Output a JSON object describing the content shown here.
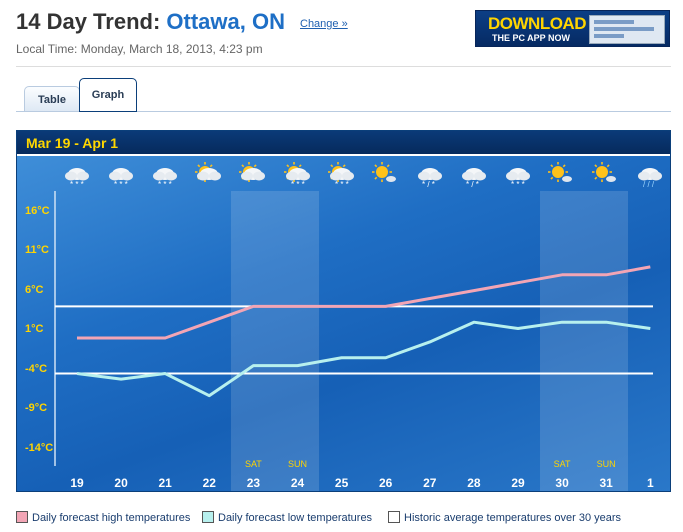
{
  "header": {
    "title_prefix": "14 Day Trend: ",
    "title_city": "Ottawa, ON",
    "change_link": "Change »",
    "local_time": "Local Time: Monday, March 18, 2013, 4:23 pm"
  },
  "banner": {
    "line1": "DOWNLOAD",
    "line2": "THE PC APP NOW"
  },
  "tabs": [
    {
      "label": "Table"
    },
    {
      "label": "Graph"
    }
  ],
  "graph": {
    "range_label": "Mar 19  -  Apr 1"
  },
  "legend": [
    {
      "label": "Daily forecast high temperatures",
      "color": "#f2a5b5"
    },
    {
      "label": "Daily forecast low temperatures",
      "color": "#b7f0ee"
    },
    {
      "label": "Historic average temperatures over 30 years",
      "color": "#ffffff"
    }
  ],
  "icons": [
    "snow-cloud",
    "snow-cloud",
    "snow-cloud",
    "partly-sunny",
    "partly-sunny",
    "snow-sun",
    "snow-sun",
    "sunny",
    "snow-rain",
    "snow-rain",
    "snow-cloud",
    "sunny",
    "sunny",
    "rain-cloud"
  ],
  "chart_data": {
    "type": "line",
    "categories": [
      "19",
      "20",
      "21",
      "22",
      "23",
      "24",
      "25",
      "26",
      "27",
      "28",
      "29",
      "30",
      "31",
      "1"
    ],
    "weekend_labels": [
      {
        "index": 4,
        "label": "SAT"
      },
      {
        "index": 5,
        "label": "SUN"
      },
      {
        "index": 11,
        "label": "SAT"
      },
      {
        "index": 12,
        "label": "SUN"
      }
    ],
    "y_ticks": [
      {
        "value": 16,
        "label": "16°C"
      },
      {
        "value": 11,
        "label": "11°C"
      },
      {
        "value": 6,
        "label": "6°C"
      },
      {
        "value": 1,
        "label": "1°C"
      },
      {
        "value": -4,
        "label": "-4°C"
      },
      {
        "value": -9,
        "label": "-9°C"
      },
      {
        "value": -14,
        "label": "-14°C"
      }
    ],
    "ylim": [
      -16,
      18
    ],
    "series": [
      {
        "name": "Daily forecast high temperatures",
        "color": "#f2a5b5",
        "values": [
          0,
          0,
          0,
          2,
          4,
          4,
          4,
          4,
          5,
          6,
          7,
          8,
          8,
          9
        ]
      },
      {
        "name": "Daily forecast low temperatures",
        "color": "#b7f0ee",
        "values": [
          -4.5,
          -5.2,
          -4.5,
          -7.3,
          -3.5,
          -3.5,
          -2.5,
          -2.5,
          -0.5,
          2,
          1.2,
          2,
          2,
          1.2
        ]
      }
    ],
    "historic_avg": [
      {
        "value": 4,
        "label": "high"
      },
      {
        "value": -4.5,
        "label": "low"
      }
    ]
  }
}
